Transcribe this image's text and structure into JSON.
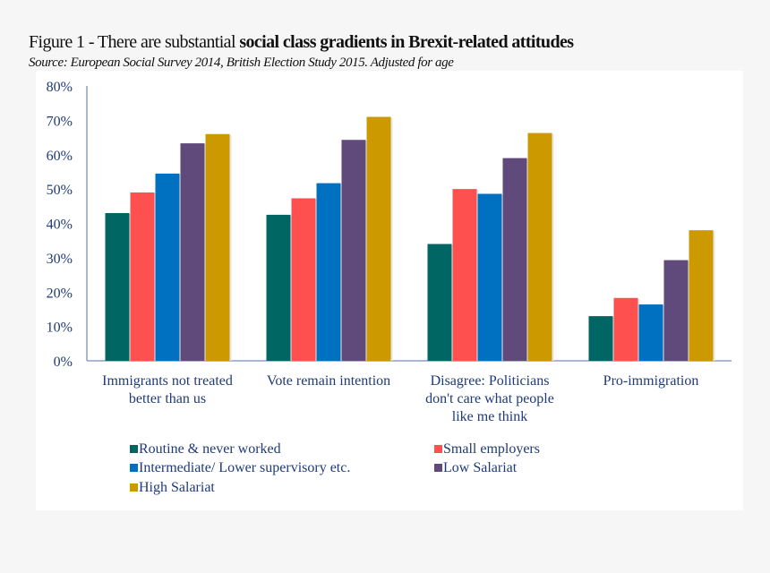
{
  "title_regular": "Figure 1 - There are substantial ",
  "title_bold": "social class gradients in Brexit-related attitudes",
  "source": "Source:  European Social Survey 2014, British Election Study 2015.  Adjusted for age",
  "chart_data": {
    "type": "bar",
    "categories": [
      [
        "Immigrants not treated",
        "better than us"
      ],
      [
        "Vote remain intention"
      ],
      [
        "Disagree: Politicians",
        "don't care what people",
        "like me think"
      ],
      [
        "Pro-immigration"
      ]
    ],
    "series": [
      {
        "name": "Routine & never worked",
        "color": "#006663",
        "values": [
          43,
          42.5,
          34,
          13
        ]
      },
      {
        "name": "Small employers",
        "color": "#ff5050",
        "values": [
          49,
          47.3,
          50,
          18.3
        ]
      },
      {
        "name": "Intermediate/ Lower supervisory etc.",
        "color": "#0070c0",
        "values": [
          54.5,
          51.7,
          48.6,
          16.4
        ]
      },
      {
        "name": "Low Salariat",
        "color": "#604a7b",
        "values": [
          63.3,
          64.3,
          59,
          29.3
        ]
      },
      {
        "name": "High Salariat",
        "color": "#cc9900",
        "values": [
          66,
          71,
          66.3,
          38
        ]
      }
    ],
    "ylim": [
      0,
      80
    ],
    "yticks": [
      "0%",
      "10%",
      "20%",
      "30%",
      "40%",
      "50%",
      "60%",
      "70%",
      "80%"
    ],
    "grid": false,
    "legend": "bottom"
  }
}
